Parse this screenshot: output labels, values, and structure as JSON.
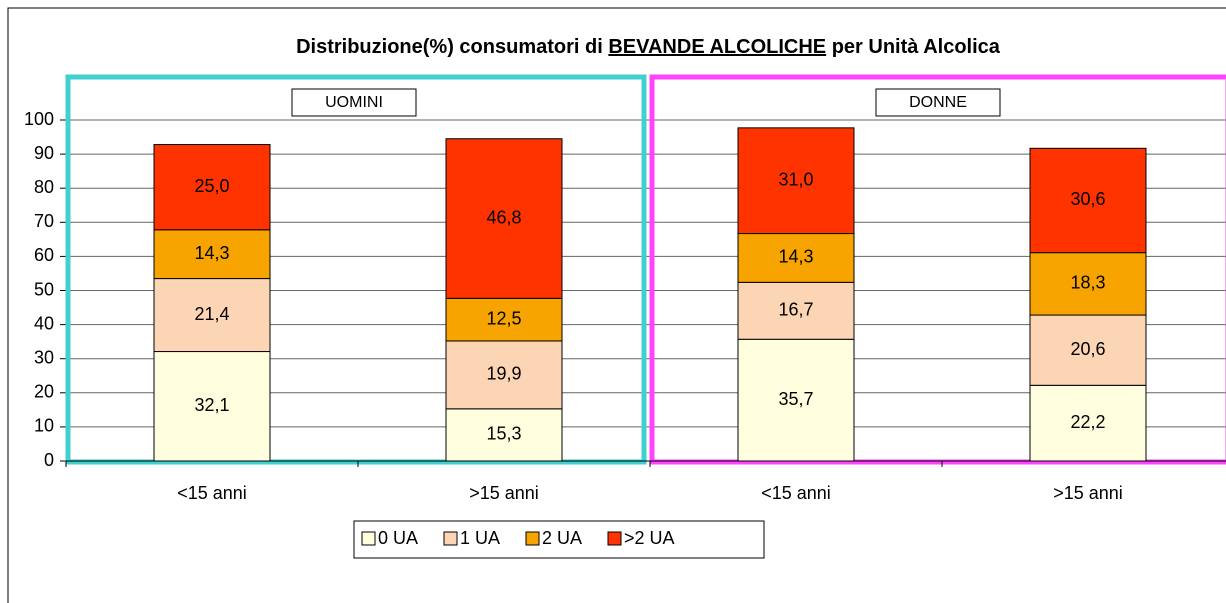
{
  "chart_data": {
    "type": "stacked_bar",
    "title_parts": [
      "Distribuzione(%) consumatori di ",
      "BEVANDE ALCOLICHE",
      " per Unità Alcolica"
    ],
    "groups": [
      {
        "label": "UOMINI",
        "color": "#40d0d0"
      },
      {
        "label": "DONNE",
        "color": "#ff44ff"
      }
    ],
    "categories": [
      "<15 anni",
      ">15 anni",
      "<15 anni",
      ">15 anni"
    ],
    "series": [
      {
        "name": "0 UA",
        "color": "#ffffe0",
        "values": [
          32.1,
          15.3,
          35.7,
          22.2
        ],
        "value_labels": [
          "32,1",
          "15,3",
          "35,7",
          "22,2"
        ]
      },
      {
        "name": "1 UA",
        "color": "#fcd5b4",
        "values": [
          21.4,
          19.9,
          16.7,
          20.6
        ],
        "value_labels": [
          "21,4",
          "19,9",
          "16,7",
          "20,6"
        ]
      },
      {
        "name": "2 UA",
        "color": "#f8a400",
        "values": [
          14.3,
          12.5,
          14.3,
          18.3
        ],
        "value_labels": [
          "14,3",
          "12,5",
          "14,3",
          "18,3"
        ]
      },
      {
        "name": ">2 UA",
        "color": "#ff3300",
        "values": [
          25.0,
          46.8,
          31.0,
          30.6
        ],
        "value_labels": [
          "25,0",
          "46,8",
          "31,0",
          "30,6"
        ]
      }
    ],
    "ylim": [
      0,
      100
    ],
    "yticks": [
      0,
      10,
      20,
      30,
      40,
      50,
      60,
      70,
      80,
      90,
      100
    ],
    "grid": true
  }
}
